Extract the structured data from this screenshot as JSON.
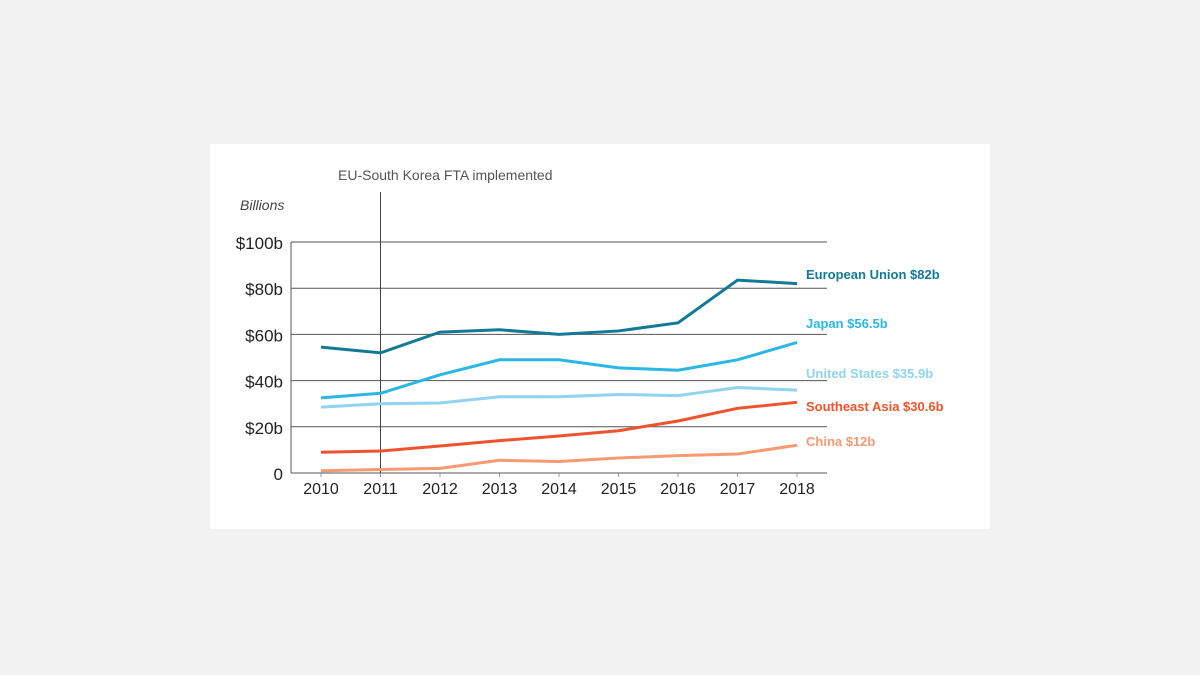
{
  "chart_data": {
    "type": "line",
    "annotation": "EU-South Korea FTA implemented",
    "annotation_x": 2011,
    "ylabel": "Billions",
    "ylim": [
      0,
      100
    ],
    "yticks": [
      {
        "v": 0,
        "label": "0"
      },
      {
        "v": 20,
        "label": "$20b"
      },
      {
        "v": 40,
        "label": "$40b"
      },
      {
        "v": 60,
        "label": "$60b"
      },
      {
        "v": 80,
        "label": "$80b"
      },
      {
        "v": 100,
        "label": "$100b"
      }
    ],
    "x": [
      2010,
      2011,
      2012,
      2013,
      2014,
      2015,
      2016,
      2017,
      2018
    ],
    "series": [
      {
        "name": "European Union",
        "label": "European Union $82b",
        "color": "#127a96",
        "values": [
          54.5,
          52,
          61,
          62,
          60,
          61.5,
          65,
          83.5,
          82
        ]
      },
      {
        "name": "Japan",
        "label": "Japan $56.5b",
        "color": "#2bb7e5",
        "values": [
          32.5,
          34.5,
          42.5,
          49,
          49,
          45.5,
          44.5,
          49,
          56.5
        ]
      },
      {
        "name": "United States",
        "label": "United States $35.9b",
        "color": "#92d3ef",
        "values": [
          28.5,
          30,
          30.3,
          33,
          33,
          34,
          33.5,
          37,
          35.9
        ]
      },
      {
        "name": "Southeast Asia",
        "label": "Southeast Asia $30.6b",
        "color": "#f0532b",
        "values": [
          9,
          9.5,
          11.7,
          14,
          16,
          18.3,
          22.5,
          28,
          30.6
        ]
      },
      {
        "name": "China",
        "label": "China $12b",
        "color": "#f59a72",
        "values": [
          1,
          1.5,
          2,
          5.5,
          5,
          6.5,
          7.5,
          8.2,
          12
        ]
      }
    ]
  }
}
